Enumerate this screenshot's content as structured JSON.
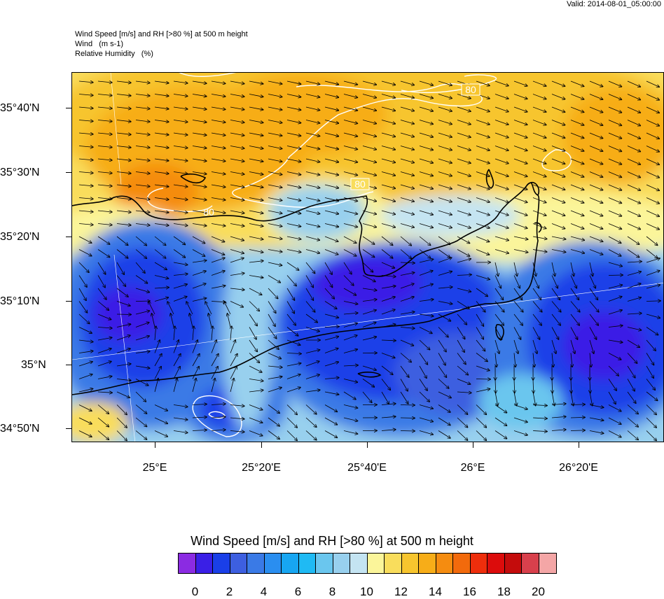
{
  "valid": "Valid: 2014-08-01_05:00:00",
  "titles": {
    "line1": "Wind Speed [m/s] and RH [>80 %] at 500 m height",
    "line2": "Wind   (m s-1)",
    "line3": "Relative Humidity   (%)"
  },
  "lat_labels": [
    "35°40'N",
    "35°30'N",
    "35°20'N",
    "35°10'N",
    "35°N",
    "34°50'N"
  ],
  "lon_labels": [
    "25°E",
    "25°20'E",
    "25°40'E",
    "26°E",
    "26°20'E"
  ],
  "contour_labels": [
    "80",
    "80",
    "80"
  ],
  "colorbar": {
    "title": "Wind Speed [m/s] and RH [>80 %] at 500 m height",
    "labels": [
      "0",
      "2",
      "4",
      "6",
      "8",
      "10",
      "12",
      "14",
      "16",
      "18",
      "20"
    ],
    "colors": [
      "#8b2be2",
      "#3a1fe6",
      "#1a3fe8",
      "#3d5fe0",
      "#3a7ae6",
      "#2a8ef0",
      "#17a6f2",
      "#1fbaf4",
      "#6ac6ee",
      "#98d0ee",
      "#c4e4f2",
      "#fbf59a",
      "#f9dd5c",
      "#f7c52e",
      "#f7ad18",
      "#f58c10",
      "#f26a0c",
      "#ee2e0c",
      "#dc0c0c",
      "#c40c0c",
      "#d8404c",
      "#f4a6a6"
    ]
  }
}
